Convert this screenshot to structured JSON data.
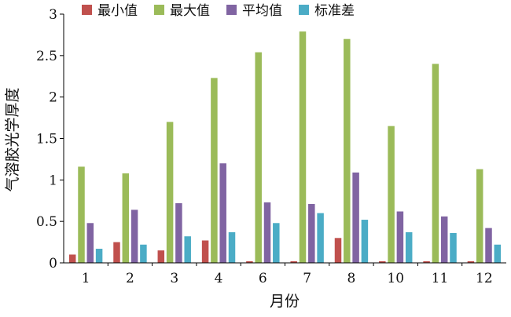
{
  "chart_data": {
    "type": "bar",
    "title": "",
    "xlabel": "月份",
    "ylabel": "气溶胶光学厚度",
    "ylim": [
      0,
      3
    ],
    "yticks": [
      "0",
      "0.5",
      "1",
      "1.5",
      "2",
      "2.5",
      "3"
    ],
    "yticks_values": [
      0,
      0.5,
      1,
      1.5,
      2,
      2.5,
      3
    ],
    "categories": [
      "1",
      "2",
      "3",
      "4",
      "6",
      "7",
      "8",
      "10",
      "11",
      "12"
    ],
    "grid": false,
    "legend_position": "top",
    "series": [
      {
        "name": "最小值",
        "color": "#c0504d",
        "values": [
          0.1,
          0.25,
          0.15,
          0.27,
          0.02,
          0.02,
          0.3,
          0.02,
          0.02,
          0.02
        ]
      },
      {
        "name": "最大值",
        "color": "#9bbb59",
        "values": [
          1.16,
          1.08,
          1.7,
          2.23,
          2.54,
          2.79,
          2.7,
          1.65,
          2.4,
          1.13
        ]
      },
      {
        "name": "平均值",
        "color": "#8064a2",
        "values": [
          0.48,
          0.64,
          0.72,
          1.2,
          0.73,
          0.71,
          1.09,
          0.62,
          0.56,
          0.42
        ]
      },
      {
        "name": "标准差",
        "color": "#4bacc6",
        "values": [
          0.17,
          0.22,
          0.32,
          0.37,
          0.48,
          0.6,
          0.52,
          0.37,
          0.36,
          0.22
        ]
      }
    ]
  }
}
